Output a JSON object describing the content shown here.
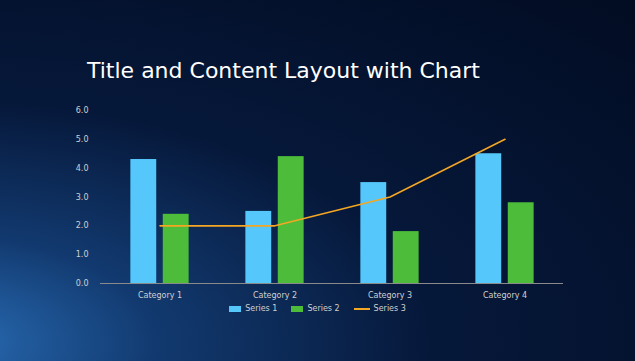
{
  "chart_data": {
    "type": "bar",
    "title": "Title and Content Layout with Chart",
    "categories": [
      "Category 1",
      "Category 2",
      "Category 3",
      "Category 4"
    ],
    "series": [
      {
        "name": "Series 1",
        "type": "bar",
        "color": "#55c7fb",
        "values": [
          4.3,
          2.5,
          3.5,
          4.5
        ]
      },
      {
        "name": "Series 2",
        "type": "bar",
        "color": "#4cbc3a",
        "values": [
          2.4,
          4.4,
          1.8,
          2.8
        ]
      },
      {
        "name": "Series 3",
        "type": "line",
        "color": "#f5a623",
        "values": [
          2,
          2,
          3,
          5
        ]
      }
    ],
    "ylim": [
      0,
      6
    ],
    "yticks": [
      0,
      1,
      2,
      3,
      4,
      5,
      6
    ],
    "grid": false,
    "legend": "bottom"
  }
}
